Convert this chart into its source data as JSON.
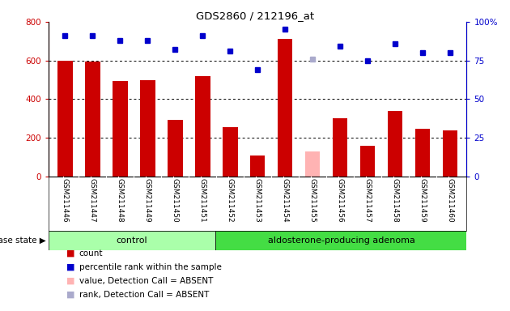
{
  "title": "GDS2860 / 212196_at",
  "samples": [
    "GSM211446",
    "GSM211447",
    "GSM211448",
    "GSM211449",
    "GSM211450",
    "GSM211451",
    "GSM211452",
    "GSM211453",
    "GSM211454",
    "GSM211455",
    "GSM211456",
    "GSM211457",
    "GSM211458",
    "GSM211459",
    "GSM211460"
  ],
  "counts": [
    600,
    595,
    495,
    500,
    295,
    520,
    255,
    110,
    710,
    130,
    300,
    160,
    340,
    248,
    240
  ],
  "absent_count": [
    null,
    null,
    null,
    null,
    null,
    null,
    null,
    null,
    null,
    130,
    null,
    null,
    null,
    null,
    null
  ],
  "percentile_ranks": [
    91,
    91,
    88,
    88,
    82,
    91,
    81,
    69,
    95,
    76,
    84,
    75,
    86,
    80,
    80
  ],
  "absent_rank": [
    null,
    null,
    null,
    null,
    null,
    null,
    null,
    null,
    null,
    76,
    null,
    null,
    null,
    null,
    null
  ],
  "bar_color": "#cc0000",
  "absent_bar_color": "#ffb3b3",
  "dot_color": "#0000cc",
  "absent_dot_color": "#aaaacc",
  "ylim_left": [
    0,
    800
  ],
  "ylim_right": [
    0,
    100
  ],
  "yticks_left": [
    0,
    200,
    400,
    600,
    800
  ],
  "yticks_right": [
    0,
    25,
    50,
    75,
    100
  ],
  "grid_values": [
    200,
    400,
    600
  ],
  "control_count": 6,
  "adenoma_count": 9,
  "disease_label_control": "control",
  "disease_label_adenoma": "aldosterone-producing adenoma",
  "disease_state_label": "disease state",
  "legend_items": [
    {
      "label": "count",
      "color": "#cc0000"
    },
    {
      "label": "percentile rank within the sample",
      "color": "#0000cc"
    },
    {
      "label": "value, Detection Call = ABSENT",
      "color": "#ffb3b3"
    },
    {
      "label": "rank, Detection Call = ABSENT",
      "color": "#aaaacc"
    }
  ],
  "background_color": "#ffffff",
  "tick_area_color": "#cccccc",
  "control_box_color": "#aaffaa",
  "adenoma_box_color": "#44dd44"
}
